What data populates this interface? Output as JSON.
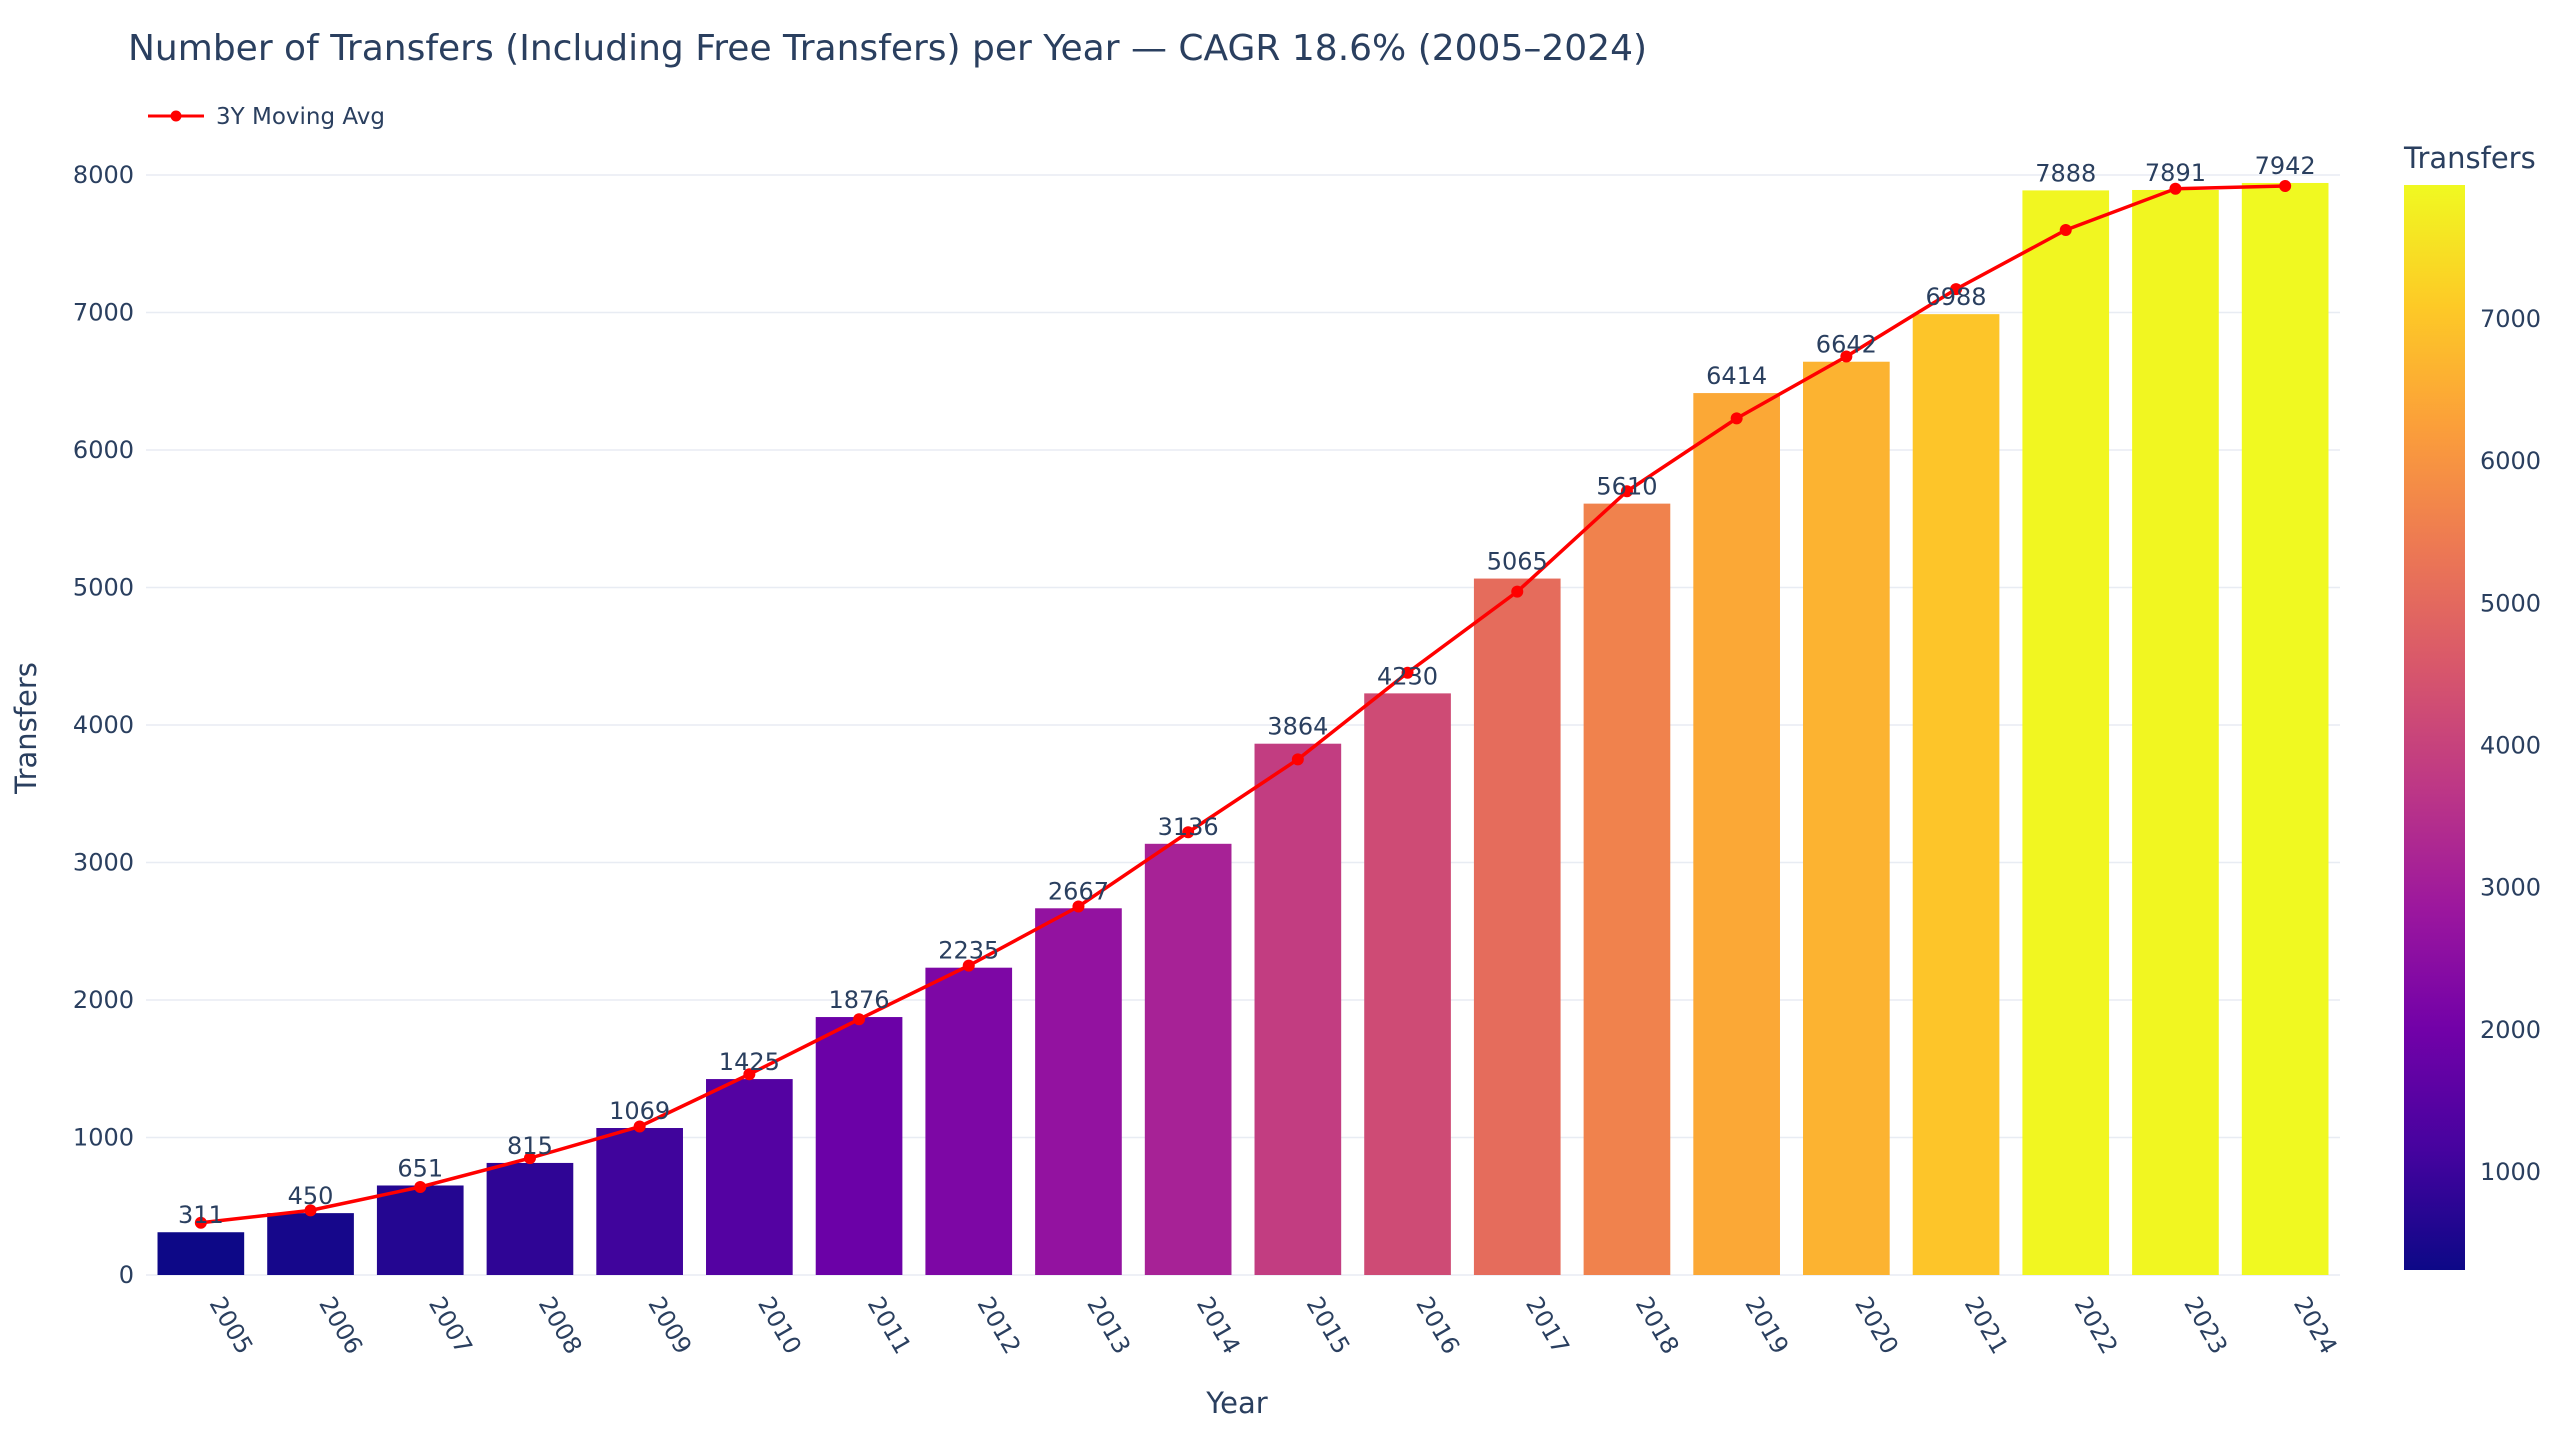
{
  "chart_data": {
    "type": "bar",
    "title": "Number of Transfers (Including Free Transfers) per Year — CAGR 18.6% (2005–2024)",
    "xlabel": "Year",
    "ylabel": "Transfers",
    "ylim": [
      0,
      8000
    ],
    "yticks": [
      0,
      1000,
      2000,
      3000,
      4000,
      5000,
      6000,
      7000,
      8000
    ],
    "categories": [
      "2005",
      "2006",
      "2007",
      "2008",
      "2009",
      "2010",
      "2011",
      "2012",
      "2013",
      "2014",
      "2015",
      "2016",
      "2017",
      "2018",
      "2019",
      "2020",
      "2021",
      "2022",
      "2023",
      "2024"
    ],
    "values": [
      311,
      450,
      651,
      815,
      1069,
      1425,
      1876,
      2235,
      2667,
      3136,
      3864,
      4230,
      5065,
      5610,
      6414,
      6642,
      6988,
      7888,
      7891,
      7942
    ],
    "series": [
      {
        "name": "3Y Moving Avg",
        "type": "line",
        "color": "#ff0000",
        "values": [
          380,
          470,
          640,
          850,
          1080,
          1460,
          1860,
          2250,
          2680,
          3220,
          3750,
          4380,
          4970,
          5700,
          6230,
          6680,
          7170,
          7600,
          7900,
          7920
        ]
      }
    ],
    "legend": {
      "position": "top-left",
      "entries": [
        "3Y Moving Avg"
      ]
    },
    "colorbar": {
      "title": "Transfers",
      "range": [
        311,
        7942
      ],
      "ticks": [
        1000,
        2000,
        3000,
        4000,
        5000,
        6000,
        7000
      ],
      "colorscale": "Plasma"
    },
    "grid": true
  }
}
